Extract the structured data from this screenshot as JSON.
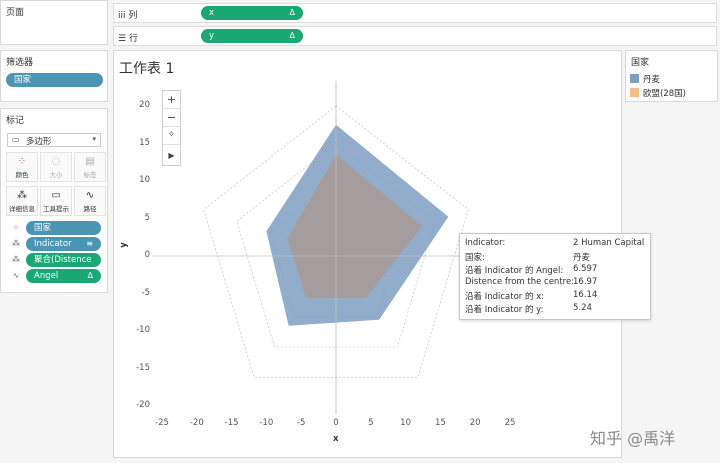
{
  "pages_pane": {
    "title": "页面"
  },
  "filters_pane": {
    "title": "筛选器",
    "items": [
      {
        "label": "国家"
      }
    ]
  },
  "marks_pane": {
    "title": "标记",
    "mark_type": "多边形",
    "cards": [
      {
        "label": "颜色",
        "icon": "color-dots-icon"
      },
      {
        "label": "大小",
        "icon": "size-icon"
      },
      {
        "label": "标签",
        "icon": "label-icon"
      },
      {
        "label": "详细信息",
        "icon": "detail-icon"
      },
      {
        "label": "工具提示",
        "icon": "tooltip-icon"
      },
      {
        "label": "路径",
        "icon": "path-icon"
      }
    ],
    "fields": [
      {
        "label": "国家",
        "icon": "color-dots-icon",
        "color": "#4a94b4"
      },
      {
        "label": "Indicator",
        "icon": "detail-icon",
        "color": "#4a94b4"
      },
      {
        "label": "聚合(Distence f..",
        "icon": "detail-icon",
        "color": "#19a874"
      },
      {
        "label": "Angel",
        "icon": "path-icon",
        "color": "#19a874"
      }
    ]
  },
  "shelves": {
    "columns": {
      "label": "列",
      "pill": "x"
    },
    "rows": {
      "label": "行",
      "pill": "y"
    }
  },
  "worksheet": {
    "title": "工作表 1"
  },
  "legend": {
    "title": "国家",
    "items": [
      {
        "label": "丹麦",
        "color": "#7f9fc2"
      },
      {
        "label": "欧盟(28国)",
        "color": "#f4bd8a"
      }
    ]
  },
  "chart_data": {
    "type": "area",
    "xlabel": "x",
    "ylabel": "y",
    "xlim": [
      -25,
      25
    ],
    "ylim": [
      -20,
      22
    ],
    "x_ticks": [
      "-25",
      "-20",
      "-15",
      "-10",
      "-5",
      "0",
      "5",
      "10",
      "15",
      "20",
      "25"
    ],
    "y_ticks": [
      "20",
      "15",
      "10",
      "5",
      "0",
      "-5",
      "-10",
      "-15",
      "-20"
    ],
    "grid_radii": [
      5,
      10,
      15,
      20
    ],
    "series": [
      {
        "name": "丹麦",
        "color": "#7f9fc2",
        "points": [
          [
            0,
            17.5
          ],
          [
            16.14,
            5.24
          ],
          [
            6.2,
            -8.5
          ],
          [
            -6.8,
            -9.3
          ],
          [
            -10,
            3.3
          ]
        ]
      },
      {
        "name": "欧盟(28国)",
        "color": "#a69a98",
        "points": [
          [
            0,
            13.5
          ],
          [
            12.4,
            4.0
          ],
          [
            4.3,
            -5.6
          ],
          [
            -4.3,
            -5.6
          ],
          [
            -7,
            2.3
          ]
        ]
      }
    ]
  },
  "tooltip": {
    "rows": [
      {
        "key": "Indicator:",
        "value": "2 Human Capital"
      },
      {
        "key": "国家:",
        "value": "丹麦"
      },
      {
        "key": "沿着 Indicator 的 Angel:",
        "value": "6.597"
      },
      {
        "key": "Distence from the centre:",
        "value": "16.97"
      },
      {
        "key": "沿着 Indicator 的 x:",
        "value": "16.14"
      },
      {
        "key": "沿着 Indicator 的 y:",
        "value": "5.24"
      }
    ]
  },
  "watermark": "知乎 @禹洋"
}
